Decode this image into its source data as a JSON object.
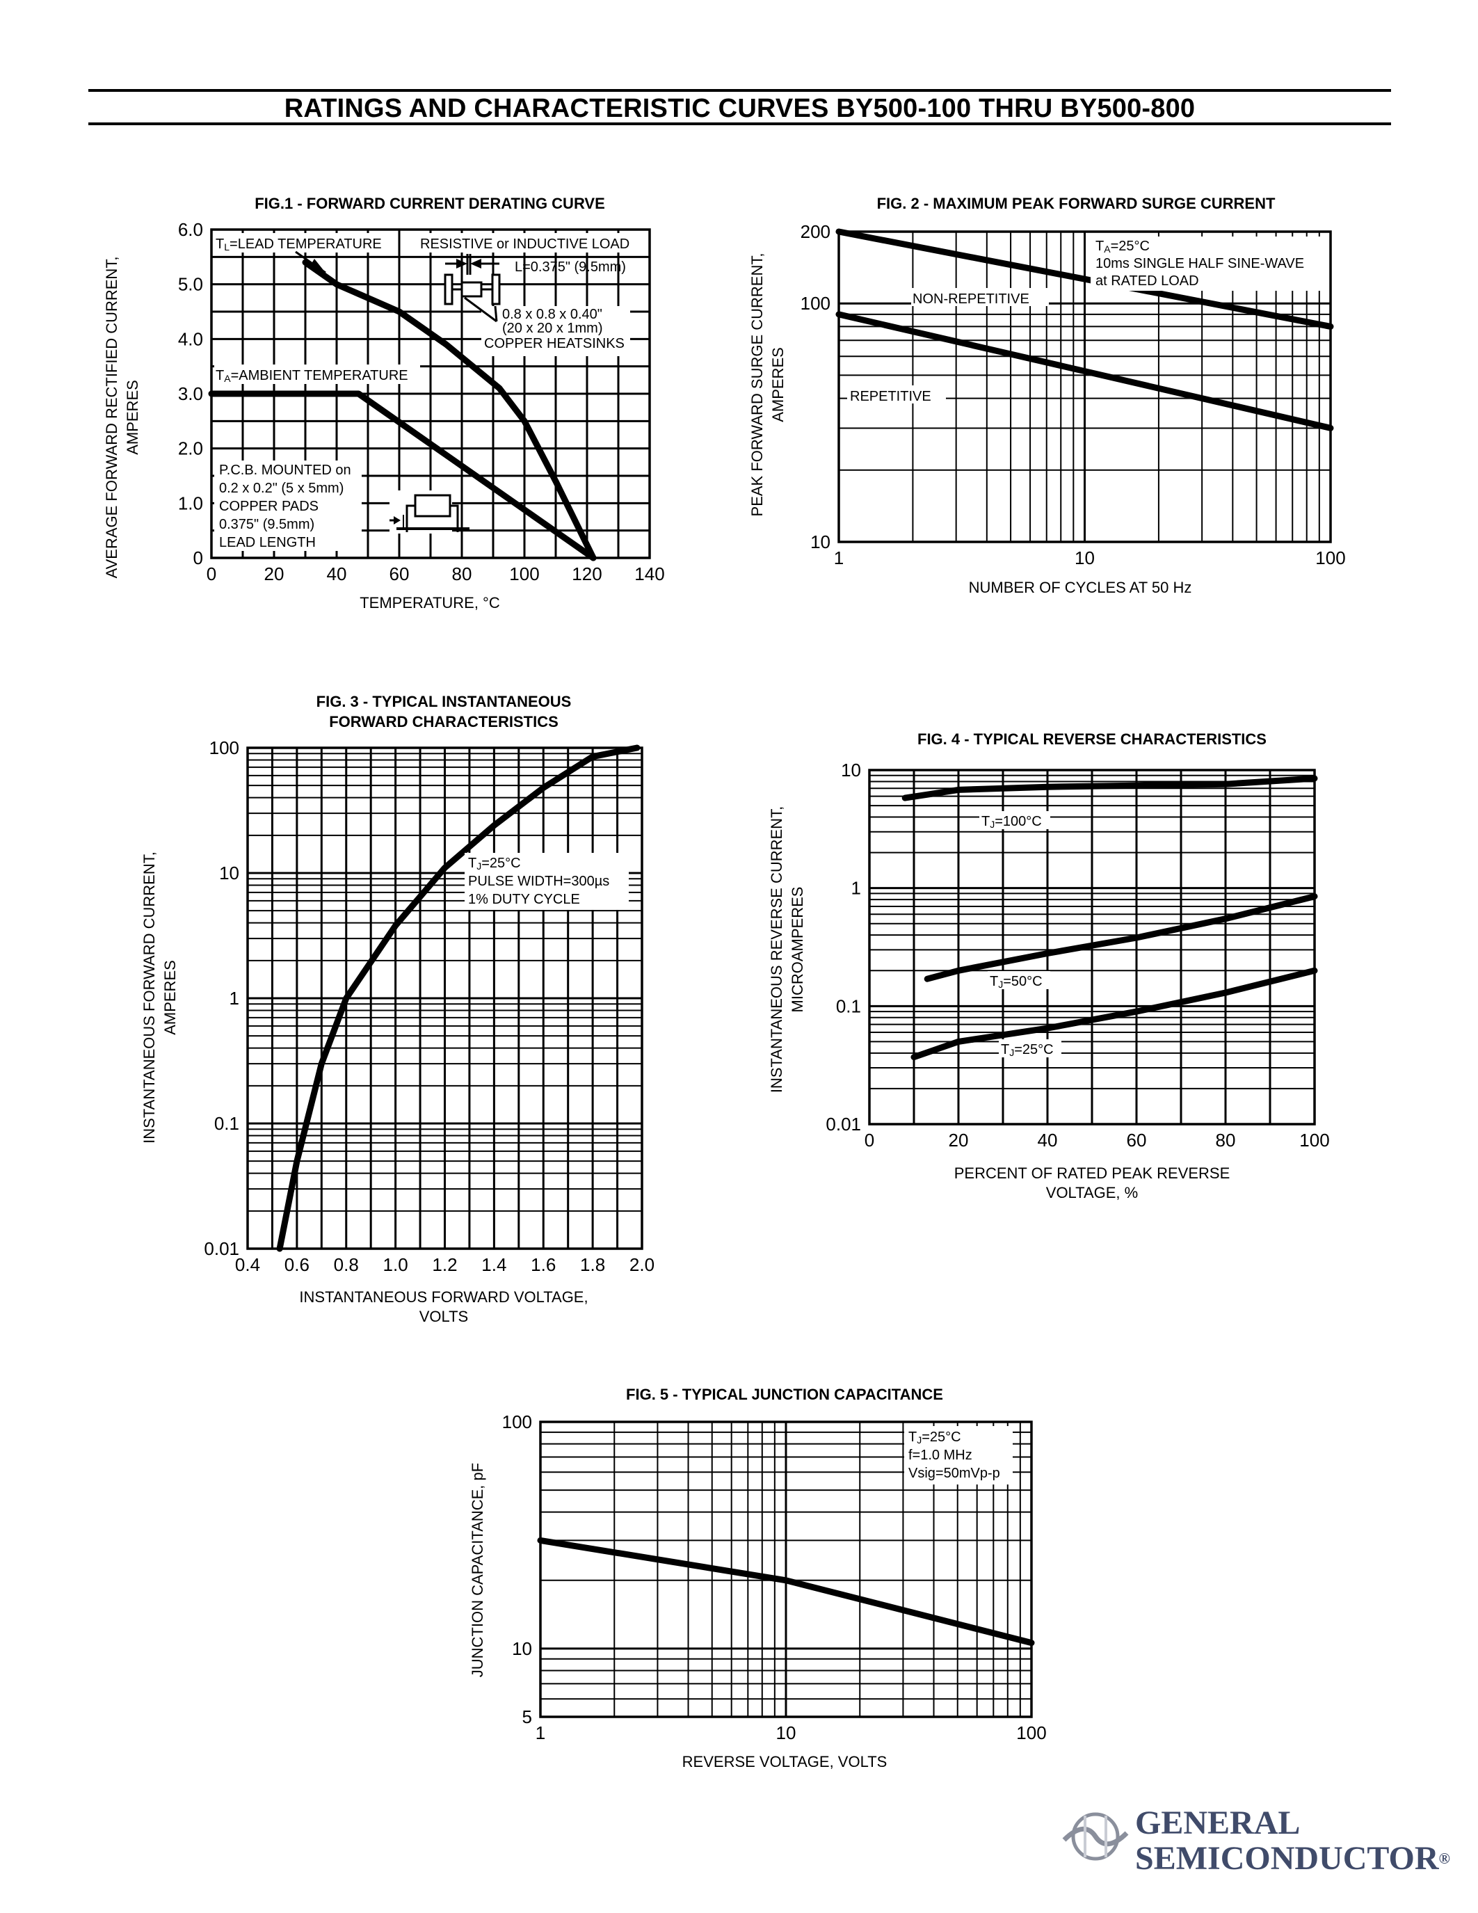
{
  "page_title": "RATINGS AND CHARACTERISTIC CURVES BY500-100 THRU BY500-800",
  "logo": {
    "line1": "GENERAL",
    "line2": "SEMICONDUCTOR",
    "registered": "®"
  },
  "chart_data": [
    {
      "id": "fig1",
      "type": "line",
      "title": "FIG.1 - FORWARD CURRENT DERATING CURVE",
      "xlabel": "TEMPERATURE, °C",
      "ylabel": [
        "AVERAGE FORWARD RECTIFIED CURRENT,",
        "AMPERES"
      ],
      "xlim": [
        0,
        140
      ],
      "ylim": [
        0,
        6
      ],
      "x_ticks": [
        0,
        20,
        40,
        60,
        80,
        100,
        120,
        140
      ],
      "x_tick_labels": [
        "0",
        "20",
        "40",
        "60",
        "80",
        "100",
        "120",
        "140"
      ],
      "y_ticks": [
        0,
        1,
        2,
        3,
        4,
        5,
        6
      ],
      "y_tick_labels": [
        "0",
        "1.0",
        "2.0",
        "3.0",
        "4.0",
        "5.0",
        "6.0"
      ],
      "grid": true,
      "series": [
        {
          "x": [
            30,
            40,
            60,
            75,
            92,
            100,
            110,
            122
          ],
          "y": [
            5.4,
            5.0,
            4.5,
            3.9,
            3.1,
            2.5,
            1.4,
            0
          ]
        },
        {
          "x": [
            0,
            47,
            122
          ],
          "y": [
            3.0,
            3.0,
            0
          ]
        }
      ],
      "annotations": {
        "tl_prefix": "T",
        "tl_sub": "L",
        "tl_text": "=LEAD TEMPERATURE",
        "ta_prefix": "T",
        "ta_sub": "A",
        "ta_text": "=AMBIENT TEMPERATURE",
        "load": "RESISTIVE or INDUCTIVE LOAD",
        "lead": "L=0.375\" (9.5mm)",
        "hs1": "0.8 x 0.8 x 0.40\"",
        "hs2": "(20 x 20 x 1mm)",
        "hs3": "COPPER HEATSINKS",
        "pcb": [
          "P.C.B. MOUNTED on",
          "0.2 x 0.2\" (5 x 5mm)",
          "COPPER PADS",
          "0.375\" (9.5mm)",
          "LEAD LENGTH"
        ]
      }
    },
    {
      "id": "fig2",
      "type": "line",
      "title": "FIG. 2 - MAXIMUM PEAK FORWARD SURGE CURRENT",
      "xlabel": "NUMBER OF CYCLES AT 50 Hz",
      "ylabel": [
        "PEAK FORWARD SURGE CURRENT,",
        "AMPERES"
      ],
      "xscale": "log",
      "yscale": "log",
      "xlim": [
        1,
        100
      ],
      "ylim": [
        10,
        200
      ],
      "x_ticks": [
        1,
        10,
        100
      ],
      "x_tick_labels": [
        "1",
        "10",
        "100"
      ],
      "y_ticks": [
        10,
        100,
        200
      ],
      "y_tick_labels": [
        "10",
        "100",
        "200"
      ],
      "grid": true,
      "series": [
        {
          "name": "NON-REPETITIVE",
          "x": [
            1,
            100
          ],
          "y": [
            200,
            80
          ]
        },
        {
          "name": "REPETITIVE",
          "x": [
            1,
            100
          ],
          "y": [
            90,
            30
          ]
        }
      ],
      "annotations": {
        "ta_prefix": "T",
        "ta_sub": "A",
        "ta_text": "=25°C",
        "line2": "10ms SINGLE HALF SINE-WAVE",
        "line3": "at RATED LOAD"
      }
    },
    {
      "id": "fig3",
      "type": "line",
      "title": [
        "FIG. 3 - TYPICAL INSTANTANEOUS",
        "FORWARD CHARACTERISTICS"
      ],
      "xlabel": [
        "INSTANTANEOUS FORWARD VOLTAGE,",
        "VOLTS"
      ],
      "ylabel": [
        "INSTANTANEOUS FORWARD CURRENT,",
        "AMPERES"
      ],
      "yscale": "log",
      "xlim": [
        0.4,
        2.0
      ],
      "ylim": [
        0.01,
        100
      ],
      "x_ticks": [
        0.4,
        0.6,
        0.8,
        1.0,
        1.2,
        1.4,
        1.6,
        1.8,
        2.0
      ],
      "x_tick_labels": [
        "0.4",
        "0.6",
        "0.8",
        "1.0",
        "1.2",
        "1.4",
        "1.6",
        "1.8",
        "2.0"
      ],
      "y_ticks": [
        0.01,
        0.1,
        1,
        10,
        100
      ],
      "y_tick_labels": [
        "0.01",
        "0.1",
        "1",
        "10",
        "100"
      ],
      "grid": true,
      "series": [
        {
          "x": [
            0.53,
            0.6,
            0.7,
            0.8,
            1.0,
            1.2,
            1.4,
            1.6,
            1.8,
            1.98
          ],
          "y": [
            0.01,
            0.05,
            0.3,
            1.0,
            3.8,
            11,
            24,
            48,
            85,
            100
          ]
        }
      ],
      "annotations": {
        "tj_prefix": "T",
        "tj_sub": "J",
        "tj_text": "=25°C",
        "line2": "PULSE WIDTH=300µs",
        "line3": "1% DUTY CYCLE"
      }
    },
    {
      "id": "fig4",
      "type": "line",
      "title": "FIG. 4 - TYPICAL REVERSE CHARACTERISTICS",
      "xlabel": [
        "PERCENT OF RATED PEAK REVERSE",
        "VOLTAGE, %"
      ],
      "ylabel": [
        "INSTANTANEOUS REVERSE CURRENT,",
        "MICROAMPERES"
      ],
      "yscale": "log",
      "xlim": [
        0,
        100
      ],
      "ylim": [
        0.01,
        10
      ],
      "x_ticks": [
        0,
        20,
        40,
        60,
        80,
        100
      ],
      "x_tick_labels": [
        "0",
        "20",
        "40",
        "60",
        "80",
        "100"
      ],
      "y_ticks": [
        0.01,
        0.1,
        1,
        10
      ],
      "y_tick_labels": [
        "0.01",
        "0.1",
        "1",
        "10"
      ],
      "grid": true,
      "series": [
        {
          "name_prefix": "T",
          "name_sub": "J",
          "name_text": "=100°C",
          "x": [
            8,
            20,
            40,
            60,
            80,
            100
          ],
          "y": [
            5.8,
            6.8,
            7.2,
            7.4,
            7.6,
            8.5
          ]
        },
        {
          "name_prefix": "T",
          "name_sub": "J",
          "name_text": "=50°C",
          "x": [
            13,
            20,
            40,
            60,
            80,
            100
          ],
          "y": [
            0.17,
            0.2,
            0.28,
            0.38,
            0.55,
            0.85
          ]
        },
        {
          "name_prefix": "T",
          "name_sub": "J",
          "name_text": "=25°C",
          "x": [
            10,
            20,
            40,
            60,
            80,
            100
          ],
          "y": [
            0.037,
            0.05,
            0.065,
            0.09,
            0.13,
            0.2
          ]
        }
      ]
    },
    {
      "id": "fig5",
      "type": "line",
      "title": "FIG. 5 - TYPICAL JUNCTION CAPACITANCE",
      "xlabel": "REVERSE VOLTAGE, VOLTS",
      "ylabel": "JUNCTION CAPACITANCE, pF",
      "xscale": "log",
      "yscale": "log",
      "xlim": [
        1,
        100
      ],
      "ylim": [
        5,
        100
      ],
      "x_ticks": [
        1,
        10,
        100
      ],
      "x_tick_labels": [
        "1",
        "10",
        "100"
      ],
      "y_ticks": [
        5,
        10,
        100
      ],
      "y_tick_labels": [
        "5",
        "10",
        "100"
      ],
      "grid": true,
      "series": [
        {
          "x": [
            1,
            10,
            100
          ],
          "y": [
            30,
            20,
            10.6
          ]
        }
      ],
      "annotations": {
        "tj_prefix": "T",
        "tj_sub": "J",
        "tj_text": "=25°C",
        "line2": "f=1.0 MHz",
        "line3": "Vsig=50mVp-p"
      }
    }
  ]
}
